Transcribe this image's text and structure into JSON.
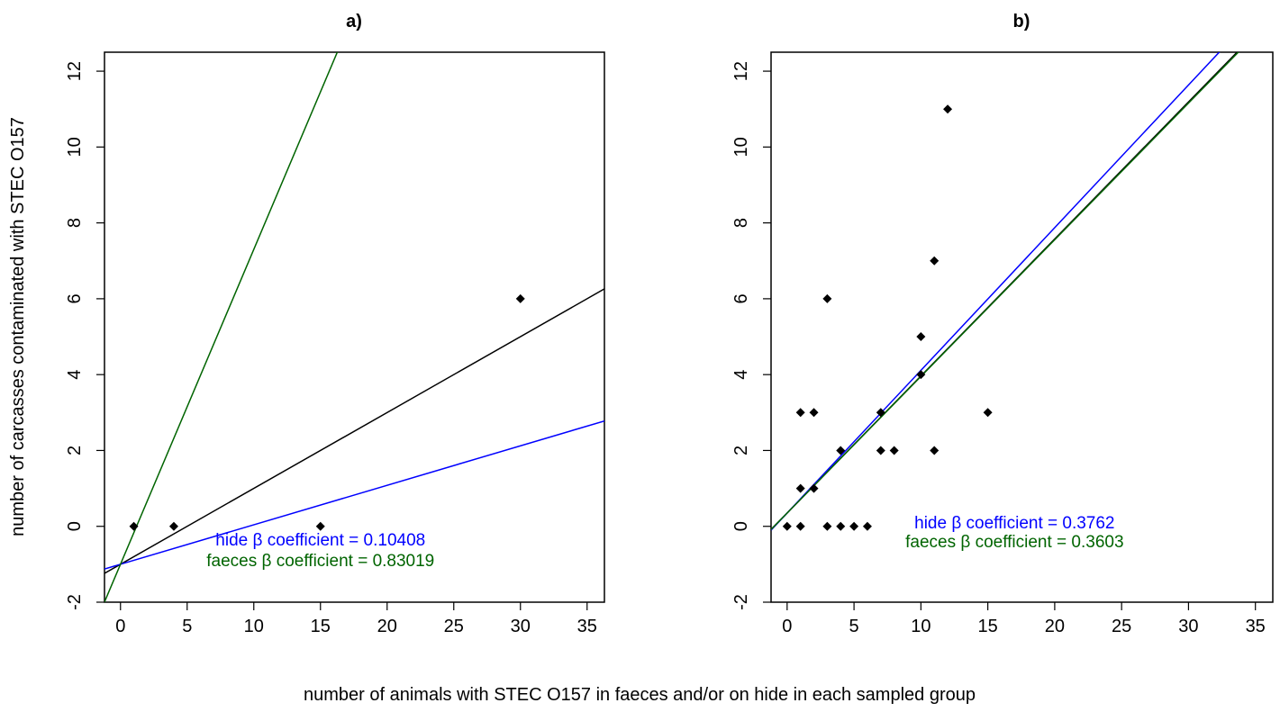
{
  "figure": {
    "ylabel": "number of carcasses contaminated with STEC O157",
    "xlabel": "number of animals with STEC O157 in faeces and/or on hide in each sampled group"
  },
  "colors": {
    "axis": "#000000",
    "points": "#000000",
    "hide_line": "#0000ff",
    "faeces_line": "#006400",
    "overall_line": "#000000"
  },
  "chart_data": [
    {
      "type": "scatter",
      "title": "a)",
      "xlim": [
        -1.2,
        36.3
      ],
      "ylim": [
        -2,
        12.5
      ],
      "x_ticks": [
        0,
        5,
        10,
        15,
        20,
        25,
        30,
        35
      ],
      "y_ticks": [
        -2,
        0,
        2,
        4,
        6,
        8,
        10,
        12
      ],
      "grid": false,
      "points": [
        {
          "x": 1,
          "y": 0
        },
        {
          "x": 4,
          "y": 0
        },
        {
          "x": 15,
          "y": 0
        },
        {
          "x": 30,
          "y": 6
        }
      ],
      "lines": [
        {
          "id": "overall",
          "intercept": -1.0,
          "slope": 0.2
        },
        {
          "id": "hide",
          "intercept": -1.0,
          "slope": 0.10408
        },
        {
          "id": "faeces",
          "intercept": -1.0,
          "slope": 0.83019
        }
      ],
      "annotations": [
        {
          "id": "hide",
          "text": "hide β coefficient = 0.10408",
          "x": 15.0,
          "y": -0.5
        },
        {
          "id": "faeces",
          "text": "faeces β coefficient = 0.83019",
          "x": 15.0,
          "y": -1.05
        }
      ]
    },
    {
      "type": "scatter",
      "title": "b)",
      "xlim": [
        -1.2,
        36.3
      ],
      "ylim": [
        -2,
        12.5
      ],
      "x_ticks": [
        0,
        5,
        10,
        15,
        20,
        25,
        30,
        35
      ],
      "y_ticks": [
        -2,
        0,
        2,
        4,
        6,
        8,
        10,
        12
      ],
      "grid": false,
      "points": [
        {
          "x": 0,
          "y": 0
        },
        {
          "x": 1,
          "y": 0
        },
        {
          "x": 3,
          "y": 0
        },
        {
          "x": 4,
          "y": 0
        },
        {
          "x": 5,
          "y": 0
        },
        {
          "x": 6,
          "y": 0
        },
        {
          "x": 1,
          "y": 1
        },
        {
          "x": 2,
          "y": 1
        },
        {
          "x": 4,
          "y": 2
        },
        {
          "x": 7,
          "y": 2
        },
        {
          "x": 8,
          "y": 2
        },
        {
          "x": 11,
          "y": 2
        },
        {
          "x": 1,
          "y": 3
        },
        {
          "x": 2,
          "y": 3
        },
        {
          "x": 7,
          "y": 3
        },
        {
          "x": 15,
          "y": 3
        },
        {
          "x": 10,
          "y": 4
        },
        {
          "x": 10,
          "y": 5
        },
        {
          "x": 3,
          "y": 6
        },
        {
          "x": 11,
          "y": 7
        },
        {
          "x": 12,
          "y": 11
        }
      ],
      "lines": [
        {
          "id": "overall",
          "intercept": 0.35,
          "slope": 0.3613
        },
        {
          "id": "hide",
          "intercept": 0.35,
          "slope": 0.3762
        },
        {
          "id": "faeces",
          "intercept": 0.35,
          "slope": 0.3603
        }
      ],
      "annotations": [
        {
          "id": "hide",
          "text": "hide β coefficient = 0.3762",
          "x": 17.0,
          "y": -0.05
        },
        {
          "id": "faeces",
          "text": "faeces β coefficient = 0.3603",
          "x": 17.0,
          "y": -0.55
        }
      ]
    }
  ]
}
